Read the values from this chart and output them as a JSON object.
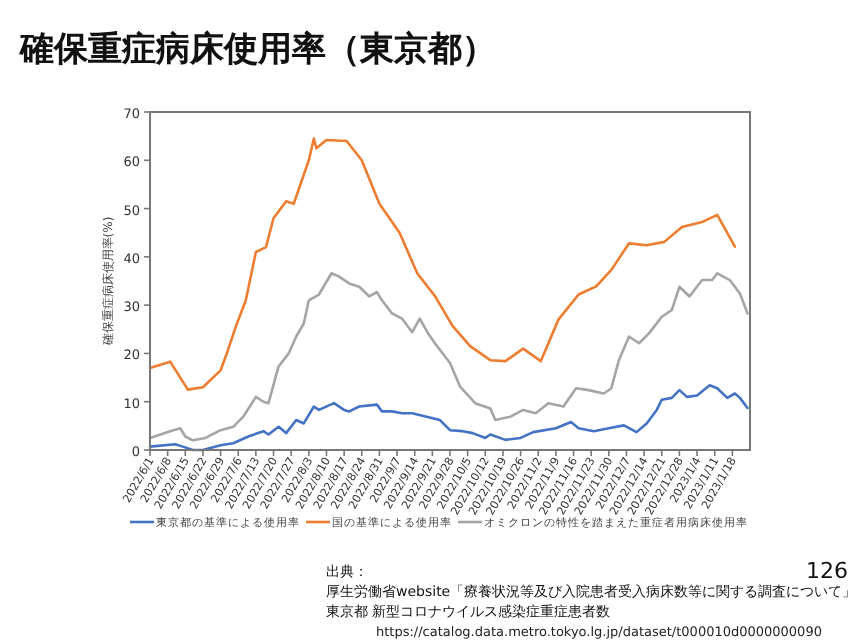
{
  "chart_data": {
    "type": "line",
    "title": "確保重症病床使用率（東京都）",
    "ylabel": "確保重症病床使用率(%)",
    "xlim": [
      "2022-06-01",
      "2023-01-25"
    ],
    "ylim": [
      0,
      70
    ],
    "yticks": [
      0,
      10,
      20,
      30,
      40,
      50,
      60,
      70
    ],
    "xticks": [
      {
        "value": "2022-06-01",
        "label": "2022/6/1"
      },
      {
        "value": "2022-06-08",
        "label": "2022/6/8"
      },
      {
        "value": "2022-06-15",
        "label": "2022/6/15"
      },
      {
        "value": "2022-06-22",
        "label": "2022/6/22"
      },
      {
        "value": "2022-06-29",
        "label": "2022/6/29"
      },
      {
        "value": "2022-07-06",
        "label": "2022/7/6"
      },
      {
        "value": "2022-07-13",
        "label": "2022/7/13"
      },
      {
        "value": "2022-07-20",
        "label": "2022/7/20"
      },
      {
        "value": "2022-07-27",
        "label": "2022/7/27"
      },
      {
        "value": "2022-08-03",
        "label": "2022/8/3"
      },
      {
        "value": "2022-08-10",
        "label": "2022/8/10"
      },
      {
        "value": "2022-08-17",
        "label": "2022/8/17"
      },
      {
        "value": "2022-08-24",
        "label": "2022/8/24"
      },
      {
        "value": "2022-08-31",
        "label": "2022/8/31"
      },
      {
        "value": "2022-09-07",
        "label": "2022/9/7"
      },
      {
        "value": "2022-09-14",
        "label": "2022/9/14"
      },
      {
        "value": "2022-09-21",
        "label": "2022/9/21"
      },
      {
        "value": "2022-09-28",
        "label": "2022/9/28"
      },
      {
        "value": "2022-10-05",
        "label": "2022/10/5"
      },
      {
        "value": "2022-10-12",
        "label": "2022/10/12"
      },
      {
        "value": "2022-10-19",
        "label": "2022/10/19"
      },
      {
        "value": "2022-10-26",
        "label": "2022/10/26"
      },
      {
        "value": "2022-11-02",
        "label": "2022/11/2"
      },
      {
        "value": "2022-11-09",
        "label": "2022/11/9"
      },
      {
        "value": "2022-11-16",
        "label": "2022/11/16"
      },
      {
        "value": "2022-11-23",
        "label": "2022/11/23"
      },
      {
        "value": "2022-11-30",
        "label": "2022/11/30"
      },
      {
        "value": "2022-12-07",
        "label": "2022/12/7"
      },
      {
        "value": "2022-12-14",
        "label": "2022/12/14"
      },
      {
        "value": "2022-12-21",
        "label": "2022/12/21"
      },
      {
        "value": "2022-12-28",
        "label": "2022/12/28"
      },
      {
        "value": "2023-01-04",
        "label": "2023/1/4"
      },
      {
        "value": "2023-01-11",
        "label": "2023/1/11"
      },
      {
        "value": "2023-01-18",
        "label": "2023/1/18"
      }
    ],
    "legend": "bottom",
    "grid": false,
    "marker": "none",
    "line_style": "solid",
    "series": [
      {
        "name": "東京都の基準による使用率",
        "color": "#4472c4",
        "x": [
          "2022-06-01",
          "2022-06-11",
          "2022-06-14",
          "2022-06-18",
          "2022-06-22",
          "2022-06-29",
          "2022-07-04",
          "2022-07-10",
          "2022-07-16",
          "2022-07-18",
          "2022-07-22",
          "2022-07-25",
          "2022-07-29",
          "2022-08-01",
          "2022-08-05",
          "2022-08-07",
          "2022-08-13",
          "2022-08-17",
          "2022-08-19",
          "2022-08-23",
          "2022-08-30",
          "2022-09-01",
          "2022-09-05",
          "2022-09-09",
          "2022-09-13",
          "2022-09-24",
          "2022-09-28",
          "2022-10-03",
          "2022-10-07",
          "2022-10-12",
          "2022-10-14",
          "2022-10-20",
          "2022-10-26",
          "2022-10-31",
          "2022-11-09",
          "2022-11-15",
          "2022-11-18",
          "2022-11-24",
          "2022-11-30",
          "2022-12-06",
          "2022-12-11",
          "2022-12-15",
          "2022-12-19",
          "2022-12-21",
          "2022-12-25",
          "2022-12-28",
          "2022-12-31",
          "2023-01-04",
          "2023-01-09",
          "2023-01-12",
          "2023-01-16",
          "2023-01-19",
          "2023-01-21",
          "2023-01-24"
        ],
        "values": [
          0.7,
          1.2,
          0.7,
          0,
          0,
          1,
          1.4,
          2.8,
          3.9,
          3.2,
          4.8,
          3.5,
          6.2,
          5.5,
          9,
          8.3,
          9.7,
          8.3,
          8,
          9,
          9.4,
          8,
          8,
          7.6,
          7.6,
          6.2,
          4.1,
          3.9,
          3.5,
          2.5,
          3.2,
          2.1,
          2.5,
          3.7,
          4.5,
          5.8,
          4.5,
          3.9,
          4.5,
          5.1,
          3.7,
          5.5,
          8.3,
          10.4,
          10.8,
          12.4,
          11,
          11.3,
          13.4,
          12.8,
          10.8,
          11.7,
          10.8,
          8.7
        ]
      },
      {
        "name": "国の基準による使用率",
        "color": "#ed7d31",
        "x": [
          "2022-06-01",
          "2022-06-09",
          "2022-06-16",
          "2022-06-22",
          "2022-06-29",
          "2022-07-01",
          "2022-07-05",
          "2022-07-09",
          "2022-07-13",
          "2022-07-17",
          "2022-07-20",
          "2022-07-25",
          "2022-07-28",
          "2022-08-03",
          "2022-08-05",
          "2022-08-06",
          "2022-08-10",
          "2022-08-18",
          "2022-08-24",
          "2022-08-31",
          "2022-09-08",
          "2022-09-15",
          "2022-09-22",
          "2022-09-29",
          "2022-10-06",
          "2022-10-14",
          "2022-10-20",
          "2022-10-27",
          "2022-11-03",
          "2022-11-10",
          "2022-11-18",
          "2022-11-25",
          "2022-12-01",
          "2022-12-08",
          "2022-12-15",
          "2022-12-22",
          "2022-12-29",
          "2023-01-06",
          "2023-01-12",
          "2023-01-19"
        ],
        "values": [
          17,
          18.3,
          12.5,
          13,
          16.5,
          19.3,
          25.5,
          31,
          41,
          42,
          48,
          51.5,
          51,
          60,
          64.5,
          62.5,
          64.2,
          64,
          60,
          51,
          45,
          36.6,
          31.9,
          25.7,
          21.5,
          18.6,
          18.4,
          21,
          18.4,
          27,
          32.2,
          33.9,
          37.3,
          42.8,
          42.4,
          43.1,
          46.2,
          47.2,
          48.7,
          42.1
        ]
      },
      {
        "name": "オミクロンの特性を踏まえた重症者用病床使用率",
        "color": "#a5a5a5",
        "x": [
          "2022-06-01",
          "2022-06-09",
          "2022-06-13",
          "2022-06-15",
          "2022-06-18",
          "2022-06-23",
          "2022-06-29",
          "2022-07-04",
          "2022-07-08",
          "2022-07-13",
          "2022-07-16",
          "2022-07-18",
          "2022-07-22",
          "2022-07-26",
          "2022-07-29",
          "2022-08-01",
          "2022-08-03",
          "2022-08-07",
          "2022-08-12",
          "2022-08-15",
          "2022-08-19",
          "2022-08-23",
          "2022-08-27",
          "2022-08-30",
          "2022-09-01",
          "2022-09-05",
          "2022-09-09",
          "2022-09-13",
          "2022-09-16",
          "2022-09-19",
          "2022-09-22",
          "2022-09-28",
          "2022-10-02",
          "2022-10-08",
          "2022-10-14",
          "2022-10-16",
          "2022-10-22",
          "2022-10-27",
          "2022-11-01",
          "2022-11-06",
          "2022-11-12",
          "2022-11-17",
          "2022-11-22",
          "2022-11-28",
          "2022-12-01",
          "2022-12-04",
          "2022-12-08",
          "2022-12-12",
          "2022-12-16",
          "2022-12-21",
          "2022-12-25",
          "2022-12-28",
          "2023-01-01",
          "2023-01-06",
          "2023-01-10",
          "2023-01-12",
          "2023-01-17",
          "2023-01-21",
          "2023-01-24"
        ],
        "values": [
          2.5,
          3.9,
          4.5,
          2.8,
          2,
          2.5,
          4.1,
          4.8,
          6.9,
          11,
          10,
          9.7,
          17.3,
          20,
          23.5,
          26.2,
          31,
          32.2,
          36.6,
          35.9,
          34.5,
          33.8,
          31.8,
          32.7,
          31,
          28.3,
          27.2,
          24.4,
          27.2,
          24.4,
          22.1,
          18,
          13.1,
          9.7,
          8.6,
          6.2,
          6.9,
          8.3,
          7.6,
          9.7,
          9,
          12.8,
          12.4,
          11.7,
          12.8,
          18.6,
          23.5,
          22.1,
          24.2,
          27.6,
          29,
          33.8,
          31.8,
          35.2,
          35.2,
          36.6,
          35.2,
          32.4,
          28.3
        ]
      }
    ],
    "annotations": [
      "出典：",
      "厚生労働省website「療養状況等及び入院患者受入病床数等に関する調査について」",
      "東京都 新型コロナウイルス感染症重症患者数",
      "https://catalog.data.metro.tokyo.lg.jp/dataset/t000010d0000000090",
      "126"
    ]
  }
}
